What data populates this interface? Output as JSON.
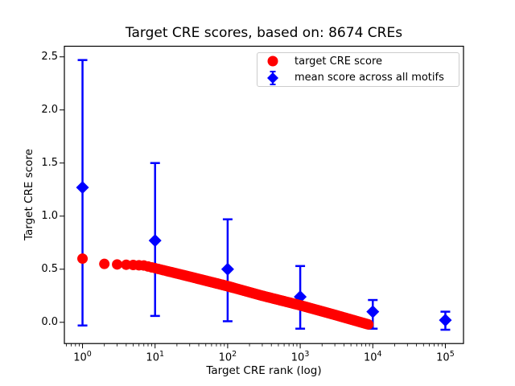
{
  "chart_data": {
    "type": "scatter",
    "title": "Target CRE scores, based on: 8674 CREs",
    "xlabel": "Target CRE rank (log)",
    "ylabel": "Target CRE score",
    "background_color": "#ffffff",
    "frame_color": "#000000",
    "grid": false,
    "x_axis": {
      "scale": "log",
      "lim_log10": [
        -0.25,
        5.25
      ],
      "major_ticks": [
        {
          "value": 1,
          "label": "10^0"
        },
        {
          "value": 10,
          "label": "10^1"
        },
        {
          "value": 100,
          "label": "10^2"
        },
        {
          "value": 1000,
          "label": "10^3"
        },
        {
          "value": 10000,
          "label": "10^4"
        },
        {
          "value": 100000,
          "label": "10^5"
        }
      ],
      "minor_tick_multiples": [
        2,
        3,
        4,
        5,
        6,
        7,
        8,
        9
      ]
    },
    "y_axis": {
      "scale": "linear",
      "lim": [
        -0.2,
        2.6
      ],
      "ticks": [
        0.0,
        0.5,
        1.0,
        1.5,
        2.0,
        2.5
      ]
    },
    "legend": {
      "position": "upper right",
      "entries": [
        {
          "label": "target CRE score",
          "marker": "circle",
          "color": "#ff0000"
        },
        {
          "label": "mean score across all motifs",
          "marker": "diamond_with_errorbar",
          "color": "#0000ff"
        }
      ]
    },
    "series": [
      {
        "name": "target CRE score",
        "marker": "circle",
        "color": "#ff0000",
        "n_points": 8674,
        "rank_range": [
          1,
          8674
        ],
        "curve_anchors": [
          [
            1,
            0.6
          ],
          [
            2,
            0.55
          ],
          [
            3,
            0.545
          ],
          [
            5,
            0.54
          ],
          [
            7,
            0.535
          ],
          [
            10,
            0.51
          ],
          [
            30,
            0.43
          ],
          [
            100,
            0.34
          ],
          [
            300,
            0.25
          ],
          [
            1000,
            0.16
          ],
          [
            3000,
            0.07
          ],
          [
            8674,
            -0.02
          ]
        ]
      },
      {
        "name": "mean score across all motifs",
        "marker": "diamond",
        "color": "#0000ff",
        "points": [
          {
            "x": 1,
            "mean": 1.27,
            "lo": -0.03,
            "hi": 2.47
          },
          {
            "x": 10,
            "mean": 0.77,
            "lo": 0.06,
            "hi": 1.5
          },
          {
            "x": 100,
            "mean": 0.5,
            "lo": 0.01,
            "hi": 0.97
          },
          {
            "x": 1000,
            "mean": 0.24,
            "lo": -0.06,
            "hi": 0.53
          },
          {
            "x": 10000,
            "mean": 0.1,
            "lo": -0.06,
            "hi": 0.21
          },
          {
            "x": 100000,
            "mean": 0.02,
            "lo": -0.07,
            "hi": 0.1
          }
        ]
      }
    ]
  }
}
